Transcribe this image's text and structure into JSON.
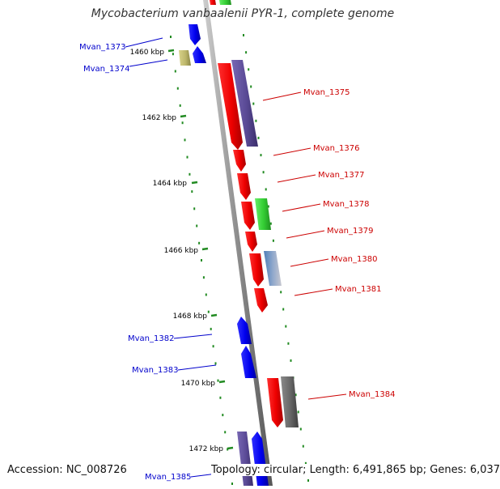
{
  "title": "Mycobacterium vanbaalenii PYR-1, complete genome",
  "footer": {
    "accession": "Accession: NC_008726",
    "summary": "Topology: circular; Length: 6,491,865 bp; Genes: 6,037"
  },
  "ticks": [
    {
      "label": "1460 kbp"
    },
    {
      "label": "1462 kbp"
    },
    {
      "label": "1464 kbp"
    },
    {
      "label": "1466 kbp"
    },
    {
      "label": "1468 kbp"
    },
    {
      "label": "1470 kbp"
    },
    {
      "label": "1472 kbp"
    }
  ],
  "genes": [
    {
      "name": "Mvan_1373",
      "color": "#0000ee"
    },
    {
      "name": "Mvan_1374",
      "color": "#0000ee"
    },
    {
      "name": "Mvan_1375",
      "color": "#dd0000"
    },
    {
      "name": "Mvan_1376",
      "color": "#dd0000"
    },
    {
      "name": "Mvan_1377",
      "color": "#dd0000"
    },
    {
      "name": "Mvan_1378",
      "color": "#dd0000"
    },
    {
      "name": "Mvan_1379",
      "color": "#dd0000"
    },
    {
      "name": "Mvan_1380",
      "color": "#dd0000"
    },
    {
      "name": "Mvan_1381",
      "color": "#dd0000"
    },
    {
      "name": "Mvan_1382",
      "color": "#0000ee"
    },
    {
      "name": "Mvan_1383",
      "color": "#0000ee"
    },
    {
      "name": "Mvan_1384",
      "color": "#dd0000"
    },
    {
      "name": "Mvan_1385",
      "color": "#0000ee"
    }
  ],
  "colors": {
    "forward_strand": "#ee0000",
    "reverse_strand": "#0000ee",
    "cog_purple": "#5a4a96",
    "cog_green": "#33cc33",
    "cog_olive": "#bdb76b",
    "cog_grey": "#666666",
    "tick_green": "#228b22",
    "backbone": "#999999"
  }
}
